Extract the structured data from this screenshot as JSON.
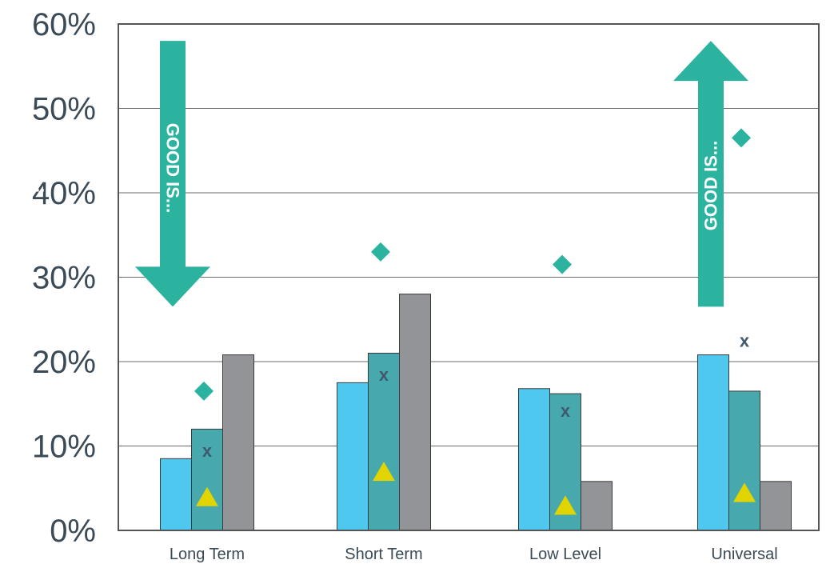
{
  "chart_data": {
    "type": "bar",
    "categories": [
      "Long Term",
      "Short Term",
      "Low Level",
      "Universal"
    ],
    "ylim": [
      0,
      60
    ],
    "yticks": [
      "0%",
      "10%",
      "20%",
      "30%",
      "40%",
      "50%",
      "60%"
    ],
    "grid": true,
    "series": [
      {
        "values": [
          8.5,
          17.5,
          16.8,
          20.8
        ],
        "color": "#4fc8f0",
        "kind": "bar"
      },
      {
        "values": [
          12,
          21,
          16.2,
          16.5
        ],
        "color": "#47a8ad",
        "kind": "bar"
      },
      {
        "values": [
          20.8,
          28,
          5.8,
          5.8
        ],
        "color": "#939497",
        "kind": "bar"
      },
      {
        "values": [
          16.5,
          33,
          31.5,
          46.5
        ],
        "color": "#2bb3a0",
        "kind": "diamond"
      },
      {
        "values": [
          9.5,
          18.5,
          14.2,
          22.5
        ],
        "color": "#3f5a6e",
        "kind": "x-mark",
        "label": "x"
      },
      {
        "values": [
          4,
          7,
          3,
          4.5
        ],
        "color": "#e2d400",
        "kind": "triangle"
      }
    ],
    "annotations": [
      {
        "category": "Long Term",
        "text": "GOOD IS...",
        "direction": "down",
        "from": 58,
        "to": 26.5
      },
      {
        "category": "Low Level",
        "text": "GOOD IS...",
        "direction": "up",
        "from": 26.5,
        "to": 58
      },
      {
        "category": "Universal",
        "text": "GOOD IS...",
        "direction": "up",
        "from": 26.5,
        "to": 58
      }
    ],
    "colors": {
      "arrow": "#2bb3a0",
      "grid": "#6b6b6b"
    }
  }
}
